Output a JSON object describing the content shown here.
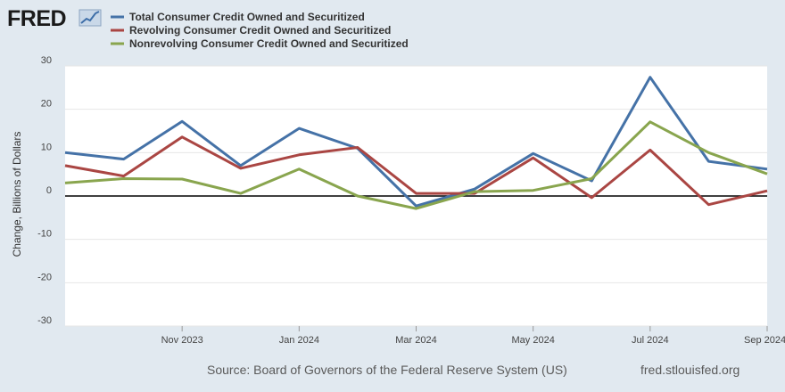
{
  "header": {
    "logo_text": "FRED",
    "logo_icon": "fred-chart-icon"
  },
  "chart_data": {
    "type": "line",
    "x": [
      "2023-09",
      "2023-10",
      "2023-11",
      "2023-12",
      "2024-01",
      "2024-02",
      "2024-03",
      "2024-04",
      "2024-05",
      "2024-06",
      "2024-07",
      "2024-08",
      "2024-09"
    ],
    "series": [
      {
        "name": "Total Consumer Credit Owned and Securitized",
        "color": "#4572a7",
        "values": [
          10.0,
          8.5,
          17.2,
          7.0,
          15.6,
          11.0,
          -2.3,
          1.6,
          9.8,
          3.5,
          27.4,
          8.0,
          6.2
        ]
      },
      {
        "name": "Revolving Consumer Credit Owned and Securitized",
        "color": "#aa4643",
        "values": [
          7.0,
          4.6,
          13.6,
          6.4,
          9.5,
          11.2,
          0.6,
          0.6,
          8.8,
          -0.4,
          10.6,
          -2.0,
          1.2
        ]
      },
      {
        "name": "Nonrevolving Consumer Credit Owned and Securitized",
        "color": "#89a54e",
        "values": [
          3.0,
          4.0,
          3.9,
          0.6,
          6.2,
          0.0,
          -2.9,
          1.0,
          1.3,
          4.0,
          17.1,
          10.0,
          5.1
        ]
      }
    ],
    "x_tick_labels": [
      "Nov 2023",
      "Jan 2024",
      "Mar 2024",
      "May 2024",
      "Jul 2024",
      "Sep 2024"
    ],
    "y_ticks": [
      30,
      20,
      10,
      0,
      -10,
      -20,
      -30
    ],
    "ylim": [
      -30,
      30
    ],
    "ylabel": "Change, Billions of Dollars",
    "xlabel": "",
    "grid": true,
    "legend_position": "top-left"
  },
  "footer": {
    "source": "Source: Board of Governors of the Federal Reserve System (US)",
    "site": "fred.stlouisfed.org"
  }
}
